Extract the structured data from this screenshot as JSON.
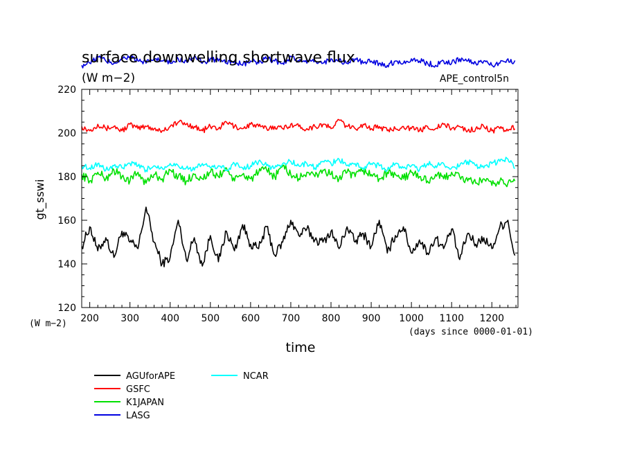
{
  "chart_data": {
    "type": "line",
    "title": "surface downwelling shortwave flux",
    "units": "(W m−2)",
    "experiment": "APE_control5n",
    "ylabel": "gt_sswi",
    "y_units_label": "(W m−2)",
    "xlabel": "time",
    "x_units_label": "(days since 0000-01-01)",
    "xlim": [
      180,
      1265
    ],
    "ylim": [
      120,
      220
    ],
    "x_ticks": [
      200,
      300,
      400,
      500,
      600,
      700,
      800,
      900,
      1000,
      1100,
      1200
    ],
    "y_ticks": [
      120,
      140,
      160,
      180,
      200,
      220
    ],
    "x_tick_labels": [
      "200",
      "300",
      "400",
      "500",
      "600",
      "700",
      "800",
      "900",
      "1000",
      "1100",
      "1200"
    ],
    "y_tick_labels": [
      "120",
      "140",
      "160",
      "180",
      "200",
      "220"
    ],
    "series": [
      {
        "name": "AGUforAPE",
        "color": "#000000",
        "x": [
          180,
          200,
          220,
          240,
          260,
          280,
          300,
          320,
          340,
          360,
          380,
          400,
          420,
          440,
          460,
          480,
          500,
          520,
          540,
          560,
          580,
          600,
          620,
          640,
          660,
          680,
          700,
          720,
          740,
          760,
          780,
          800,
          820,
          840,
          860,
          880,
          900,
          920,
          940,
          960,
          980,
          1000,
          1020,
          1040,
          1060,
          1080,
          1100,
          1120,
          1140,
          1160,
          1180,
          1200,
          1220,
          1240,
          1260
        ],
        "values": [
          148,
          157,
          146,
          152,
          143,
          155,
          150,
          147,
          166,
          150,
          140,
          143,
          160,
          142,
          152,
          139,
          153,
          141,
          155,
          146,
          158,
          149,
          147,
          157,
          144,
          150,
          160,
          153,
          156,
          151,
          150,
          155,
          147,
          157,
          150,
          154,
          148,
          160,
          145,
          153,
          157,
          145,
          151,
          145,
          152,
          147,
          156,
          142,
          154,
          149,
          152,
          147,
          157,
          160,
          140
        ]
      },
      {
        "name": "GSFC",
        "color": "#ff0000",
        "x": [
          180,
          200,
          220,
          240,
          260,
          280,
          300,
          320,
          340,
          360,
          380,
          400,
          420,
          440,
          460,
          480,
          500,
          520,
          540,
          560,
          580,
          600,
          620,
          640,
          660,
          680,
          700,
          720,
          740,
          760,
          780,
          800,
          820,
          840,
          860,
          880,
          900,
          920,
          940,
          960,
          980,
          1000,
          1020,
          1040,
          1060,
          1080,
          1100,
          1120,
          1140,
          1160,
          1180,
          1200,
          1220,
          1240,
          1260
        ],
        "values": [
          203,
          201,
          204,
          202,
          203,
          201,
          204,
          202,
          203,
          202,
          201,
          203,
          205,
          204,
          203,
          201,
          203,
          202,
          205,
          203,
          202,
          204,
          203,
          202,
          203,
          202,
          204,
          203,
          202,
          203,
          204,
          202,
          206,
          203,
          202,
          204,
          202,
          203,
          201,
          202,
          203,
          202,
          201,
          203,
          202,
          204,
          202,
          203,
          201,
          202,
          203,
          201,
          202,
          201,
          203
        ]
      },
      {
        "name": "K1JAPAN",
        "color": "#00e000",
        "x": [
          180,
          200,
          220,
          240,
          260,
          280,
          300,
          320,
          340,
          360,
          380,
          400,
          420,
          440,
          460,
          480,
          500,
          520,
          540,
          560,
          580,
          600,
          620,
          640,
          660,
          680,
          700,
          720,
          740,
          760,
          780,
          800,
          820,
          840,
          860,
          880,
          900,
          920,
          940,
          960,
          980,
          1000,
          1020,
          1040,
          1060,
          1080,
          1100,
          1120,
          1140,
          1160,
          1180,
          1200,
          1220,
          1240,
          1260
        ],
        "values": [
          181,
          178,
          182,
          179,
          183,
          180,
          178,
          182,
          177,
          181,
          179,
          183,
          180,
          178,
          181,
          179,
          182,
          180,
          184,
          178,
          181,
          179,
          182,
          183,
          180,
          185,
          181,
          179,
          182,
          180,
          183,
          181,
          179,
          182,
          180,
          183,
          181,
          179,
          182,
          181,
          179,
          182,
          180,
          178,
          181,
          179,
          182,
          180,
          178,
          177,
          179,
          176,
          178,
          177,
          178
        ]
      },
      {
        "name": "LASG",
        "color": "#0000e0",
        "x": [
          180,
          200,
          220,
          240,
          260,
          280,
          300,
          320,
          340,
          360,
          380,
          400,
          420,
          440,
          460,
          480,
          500,
          520,
          540,
          560,
          580,
          600,
          620,
          640,
          660,
          680,
          700,
          720,
          740,
          760,
          780,
          800,
          820,
          840,
          860,
          880,
          900,
          920,
          940,
          960,
          980,
          1000,
          1020,
          1040,
          1060,
          1080,
          1100,
          1120,
          1140,
          1160,
          1180,
          1200,
          1220,
          1240,
          1260
        ],
        "values": [
          231,
          232,
          235,
          233,
          232,
          234,
          235,
          233,
          232,
          234,
          233,
          232,
          234,
          233,
          235,
          232,
          234,
          233,
          232,
          233,
          231,
          233,
          232,
          234,
          233,
          232,
          235,
          233,
          232,
          233,
          232,
          234,
          233,
          232,
          234,
          232,
          233,
          232,
          231,
          233,
          232,
          234,
          233,
          232,
          231,
          233,
          232,
          234,
          233,
          232,
          233,
          231,
          232,
          234,
          232
        ]
      },
      {
        "name": "NCAR",
        "color": "#00ffff",
        "x": [
          180,
          200,
          220,
          240,
          260,
          280,
          300,
          320,
          340,
          360,
          380,
          400,
          420,
          440,
          460,
          480,
          500,
          520,
          540,
          560,
          580,
          600,
          620,
          640,
          660,
          680,
          700,
          720,
          740,
          760,
          780,
          800,
          820,
          840,
          860,
          880,
          900,
          920,
          940,
          960,
          980,
          1000,
          1020,
          1040,
          1060,
          1080,
          1100,
          1120,
          1140,
          1160,
          1180,
          1200,
          1220,
          1240,
          1260
        ],
        "values": [
          185,
          184,
          186,
          183,
          185,
          184,
          186,
          185,
          183,
          185,
          184,
          186,
          185,
          184,
          183,
          186,
          184,
          185,
          183,
          186,
          184,
          185,
          187,
          185,
          184,
          186,
          187,
          185,
          186,
          184,
          187,
          186,
          188,
          185,
          186,
          184,
          186,
          185,
          183,
          186,
          184,
          185,
          183,
          186,
          185,
          186,
          184,
          185,
          187,
          185,
          184,
          186,
          187,
          188,
          184
        ]
      }
    ]
  }
}
